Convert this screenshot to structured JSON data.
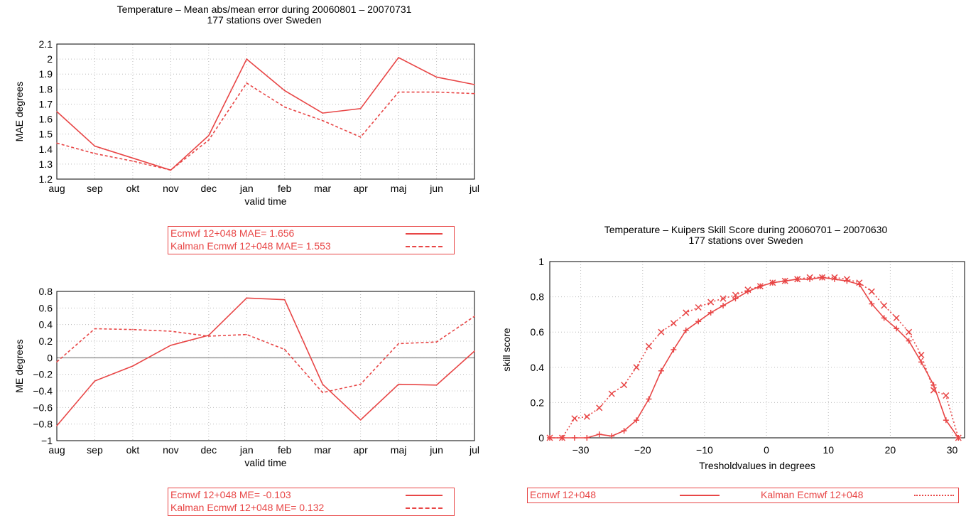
{
  "colors": {
    "series": "#e84646",
    "zero_line": "#999999",
    "grid": "#bbbbbb"
  },
  "mae_chart": {
    "title_line1": "Temperature – Mean abs/mean error during 20060801 – 20070731",
    "title_line2": "177 stations over Sweden",
    "legend": [
      "Ecmwf 12+048 MAE= 1.656",
      "Kalman Ecmwf 12+048 MAE= 1.553"
    ]
  },
  "me_chart": {
    "legend": [
      "Ecmwf 12+048 ME= -0.103",
      "Kalman Ecmwf 12+048 ME=  0.132"
    ]
  },
  "kss_chart": {
    "title_line1": "Temperature – Kuipers Skill Score during 20060701 – 20070630",
    "title_line2": "177 stations over Sweden",
    "legend": [
      "Ecmwf 12+048",
      "Kalman Ecmwf 12+048"
    ]
  },
  "chart_data": [
    {
      "type": "line",
      "title": "Temperature – Mean abs/mean error during 20060801 – 20070731\n177 stations over Sweden",
      "xlabel": "valid time",
      "ylabel": "MAE degrees",
      "categories": [
        "aug",
        "sep",
        "okt",
        "nov",
        "dec",
        "jan",
        "feb",
        "mar",
        "apr",
        "maj",
        "jun",
        "jul"
      ],
      "ylim": [
        1.2,
        2.1
      ],
      "yticks": [
        1.2,
        1.3,
        1.4,
        1.5,
        1.6,
        1.7,
        1.8,
        1.9,
        2,
        2.1
      ],
      "grid": true,
      "series": [
        {
          "name": "Ecmwf 12+048 MAE= 1.656",
          "style": "solid",
          "values": [
            1.65,
            1.42,
            1.34,
            1.26,
            1.49,
            2.0,
            1.79,
            1.64,
            1.67,
            2.01,
            1.88,
            1.83
          ]
        },
        {
          "name": "Kalman Ecmwf 12+048 MAE= 1.553",
          "style": "dashed",
          "values": [
            1.44,
            1.37,
            1.32,
            1.26,
            1.46,
            1.84,
            1.68,
            1.59,
            1.48,
            1.78,
            1.78,
            1.77
          ]
        }
      ]
    },
    {
      "type": "line",
      "xlabel": "valid time",
      "ylabel": "ME degrees",
      "categories": [
        "aug",
        "sep",
        "okt",
        "nov",
        "dec",
        "jan",
        "feb",
        "mar",
        "apr",
        "maj",
        "jun",
        "jul"
      ],
      "ylim": [
        -1,
        0.8
      ],
      "yticks": [
        -1,
        -0.8,
        -0.6,
        -0.4,
        -0.2,
        0,
        0.2,
        0.4,
        0.6,
        0.8
      ],
      "grid": true,
      "zero_line": true,
      "series": [
        {
          "name": "Ecmwf 12+048 ME= -0.103",
          "style": "solid",
          "values": [
            -0.82,
            -0.28,
            -0.1,
            0.15,
            0.27,
            0.72,
            0.7,
            -0.32,
            -0.75,
            -0.32,
            -0.33,
            0.08
          ]
        },
        {
          "name": "Kalman Ecmwf 12+048 ME=  0.132",
          "style": "dashed",
          "values": [
            -0.05,
            0.35,
            0.34,
            0.32,
            0.26,
            0.28,
            0.1,
            -0.42,
            -0.32,
            0.17,
            0.19,
            0.5
          ]
        }
      ]
    },
    {
      "type": "line",
      "title": "Temperature – Kuipers Skill Score during 20060701 – 20070630\n177 stations over Sweden",
      "xlabel": "Tresholdvalues in degrees",
      "ylabel": "skill score",
      "xlim": [
        -35,
        32
      ],
      "xticks": [
        -30,
        -20,
        -10,
        0,
        10,
        20,
        30
      ],
      "ylim": [
        0,
        1
      ],
      "yticks": [
        0,
        0.2,
        0.4,
        0.6,
        0.8,
        1
      ],
      "grid": true,
      "series": [
        {
          "name": "Ecmwf 12+048",
          "style": "solid",
          "marker": "+",
          "x": [
            -35,
            -33,
            -31,
            -29,
            -27,
            -25,
            -23,
            -21,
            -19,
            -17,
            -15,
            -13,
            -11,
            -9,
            -7,
            -5,
            -3,
            -1,
            1,
            3,
            5,
            7,
            9,
            11,
            13,
            15,
            17,
            19,
            21,
            23,
            25,
            27,
            29,
            31
          ],
          "values": [
            0.0,
            0.0,
            0.0,
            0.0,
            0.02,
            0.01,
            0.04,
            0.1,
            0.22,
            0.38,
            0.5,
            0.61,
            0.66,
            0.71,
            0.75,
            0.79,
            0.83,
            0.86,
            0.88,
            0.89,
            0.9,
            0.9,
            0.91,
            0.9,
            0.89,
            0.87,
            0.76,
            0.68,
            0.62,
            0.55,
            0.43,
            0.3,
            0.1,
            0.0
          ]
        },
        {
          "name": "Kalman Ecmwf 12+048",
          "style": "dotted",
          "marker": "x",
          "x": [
            -35,
            -33,
            -31,
            -29,
            -27,
            -25,
            -23,
            -21,
            -19,
            -17,
            -15,
            -13,
            -11,
            -9,
            -7,
            -5,
            -3,
            -1,
            1,
            3,
            5,
            7,
            9,
            11,
            13,
            15,
            17,
            19,
            21,
            23,
            25,
            27,
            29,
            31
          ],
          "values": [
            0.0,
            0.0,
            0.11,
            0.12,
            0.17,
            0.25,
            0.3,
            0.4,
            0.52,
            0.6,
            0.65,
            0.71,
            0.74,
            0.77,
            0.79,
            0.81,
            0.84,
            0.86,
            0.88,
            0.89,
            0.9,
            0.91,
            0.91,
            0.91,
            0.9,
            0.88,
            0.83,
            0.75,
            0.68,
            0.6,
            0.47,
            0.27,
            0.24,
            0.0
          ]
        }
      ]
    }
  ]
}
